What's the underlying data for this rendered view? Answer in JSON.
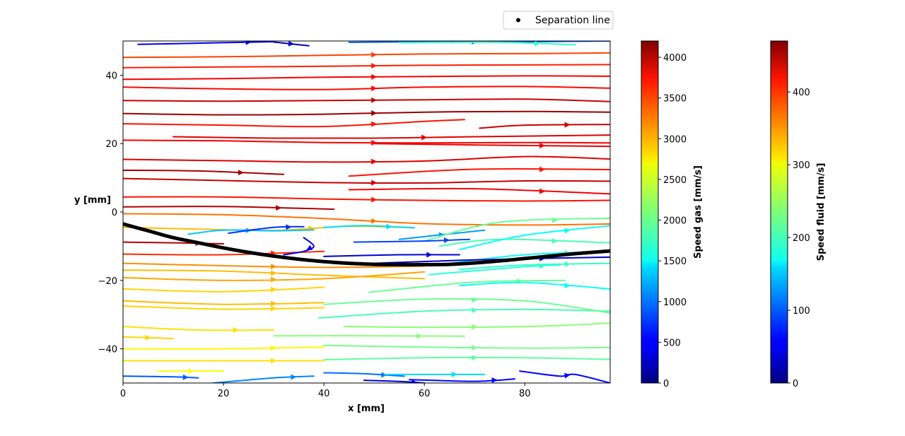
{
  "chart_data": {
    "type": "streamplot",
    "xlabel": "x [mm]",
    "ylabel": "y [mm]",
    "xlim": [
      0,
      97
    ],
    "ylim": [
      -50,
      50
    ],
    "xticks": [
      0,
      20,
      40,
      60,
      80
    ],
    "yticks": [
      -40,
      -20,
      0,
      20,
      40
    ],
    "legend": {
      "label": "Separation line",
      "placement": "top-right, above plot"
    },
    "separation_line": {
      "x": [
        0,
        5,
        10,
        15,
        20,
        25,
        30,
        35,
        40,
        45,
        50,
        55,
        60,
        65,
        70,
        75,
        80,
        85,
        90,
        97
      ],
      "y": [
        -3.5,
        -5.5,
        -7.5,
        -9,
        -10.5,
        -11.8,
        -12.9,
        -13.8,
        -14.5,
        -15,
        -15.3,
        -15.4,
        -15.4,
        -15.3,
        -14.9,
        -14.3,
        -13.6,
        -12.9,
        -12.2,
        -11.4
      ]
    },
    "colorbars": [
      {
        "label": "Speed gas [mm/s]",
        "min": 0,
        "max": 4200,
        "colormap": "jet",
        "ticks": [
          0,
          500,
          1000,
          1500,
          2000,
          2500,
          3000,
          3500,
          4000
        ]
      },
      {
        "label": "Speed fluid [mm/s]",
        "min": 0,
        "max": 470,
        "colormap": "jet",
        "ticks": [
          0,
          100,
          200,
          300,
          400
        ]
      }
    ],
    "gas_streamlines": [
      {
        "x": [
          0,
          20,
          40,
          60,
          80,
          97
        ],
        "y": [
          45.2,
          45.4,
          45.8,
          46.2,
          46.3,
          46.5
        ],
        "speed": 3400
      },
      {
        "x": [
          0,
          20,
          40,
          60,
          80,
          97
        ],
        "y": [
          42.2,
          42.4,
          42.6,
          42.9,
          43.0,
          43.1
        ],
        "speed": 3550
      },
      {
        "x": [
          0,
          20,
          40,
          60,
          80,
          97
        ],
        "y": [
          38.8,
          39.0,
          39.4,
          39.6,
          39.8,
          39.7
        ],
        "speed": 3700
      },
      {
        "x": [
          0,
          20,
          40,
          60,
          80,
          97
        ],
        "y": [
          36.5,
          36.0,
          35.8,
          36.5,
          36.7,
          36.2
        ],
        "speed": 3650
      },
      {
        "x": [
          0,
          20,
          40,
          60,
          80,
          97
        ],
        "y": [
          32.6,
          32.4,
          32.6,
          32.8,
          33.0,
          32.3
        ],
        "speed": 3900
      },
      {
        "x": [
          0,
          20,
          40,
          60,
          80,
          97
        ],
        "y": [
          28.8,
          28.4,
          28.6,
          29.2,
          29.4,
          29.2
        ],
        "speed": 4100
      },
      {
        "x": [
          0,
          20,
          40,
          60,
          68
        ],
        "y": [
          25.8,
          25.4,
          25.0,
          26.5,
          27.0
        ],
        "speed": 3600
      },
      {
        "x": [
          71,
          80,
          97
        ],
        "y": [
          24.5,
          25.4,
          25.6
        ],
        "speed": 3900
      },
      {
        "x": [
          10,
          30,
          50,
          70,
          97
        ],
        "y": [
          22.0,
          21.6,
          21.6,
          22.0,
          22.5
        ],
        "speed": 3800
      },
      {
        "x": [
          0,
          20,
          40,
          60,
          80,
          97
        ],
        "y": [
          21.0,
          20.8,
          20.3,
          20.2,
          20.3,
          20.2
        ],
        "speed": 3700
      },
      {
        "x": [
          50,
          70,
          97
        ],
        "y": [
          20.0,
          19.6,
          19.2
        ],
        "speed": 3750
      },
      {
        "x": [
          0,
          20,
          40,
          60,
          80,
          97
        ],
        "y": [
          15.4,
          15.0,
          14.6,
          14.9,
          16.2,
          15.5
        ],
        "speed": 3800
      },
      {
        "x": [
          0,
          15,
          32
        ],
        "y": [
          12.2,
          12.0,
          11.0
        ],
        "speed": 4050
      },
      {
        "x": [
          45,
          70,
          97
        ],
        "y": [
          10.5,
          12.5,
          12.4
        ],
        "speed": 3600
      },
      {
        "x": [
          0,
          20,
          40,
          60,
          80,
          97
        ],
        "y": [
          9.8,
          9.2,
          8.6,
          8.5,
          9.1,
          9.0
        ],
        "speed": 3900
      },
      {
        "x": [
          45,
          70,
          97
        ],
        "y": [
          6.5,
          6.8,
          5.3
        ],
        "speed": 3700
      },
      {
        "x": [
          0,
          20,
          40,
          60,
          80,
          97
        ],
        "y": [
          4.4,
          4.4,
          3.8,
          3.4,
          3.2,
          3.4
        ],
        "speed": 3600
      },
      {
        "x": [
          0,
          20,
          42
        ],
        "y": [
          1.5,
          1.6,
          0.8
        ],
        "speed": 4000
      },
      {
        "x": [
          0,
          20,
          40,
          60,
          80,
          97
        ],
        "y": [
          -0.5,
          -0.8,
          -1.9,
          -3.4,
          -3.8,
          -3.5
        ],
        "speed": 3200
      },
      {
        "x": [
          0,
          15,
          30,
          45,
          58
        ],
        "y": [
          -4.5,
          -5.0,
          -5.4,
          -4.2,
          -4.6
        ],
        "speed": 2900
      },
      {
        "x": [
          0,
          10,
          20
        ],
        "y": [
          -8.8,
          -9.0,
          -9.3
        ],
        "speed": 4000
      },
      {
        "x": [
          0,
          20,
          40
        ],
        "y": [
          -12.3,
          -12.5,
          -11.5
        ],
        "speed": 3500
      },
      {
        "x": [
          0,
          20,
          40,
          60
        ],
        "y": [
          -15.0,
          -15.7,
          -16.2,
          -15.8
        ],
        "speed": 3100
      },
      {
        "x": [
          0,
          20,
          40,
          60
        ],
        "y": [
          -17.0,
          -17.3,
          -18.5,
          -19.5
        ],
        "speed": 2900
      },
      {
        "x": [
          0,
          20,
          40,
          60
        ],
        "y": [
          -19.2,
          -20.0,
          -19.5,
          -17.5
        ],
        "speed": 3000
      },
      {
        "x": [
          0,
          20,
          40
        ],
        "y": [
          -22.5,
          -23.3,
          -22.0
        ],
        "speed": 2800
      },
      {
        "x": [
          0,
          20,
          40
        ],
        "y": [
          -26.0,
          -27.0,
          -26.5
        ],
        "speed": 2900
      },
      {
        "x": [
          0,
          20,
          40
        ],
        "y": [
          -27.5,
          -28.4,
          -28.0
        ],
        "speed": 2800
      },
      {
        "x": [
          0,
          15,
          30
        ],
        "y": [
          -33.5,
          -34.5,
          -34.5
        ],
        "speed": 2750
      },
      {
        "x": [
          0,
          10
        ],
        "y": [
          -36.5,
          -37.0
        ],
        "speed": 2800
      },
      {
        "x": [
          0,
          20,
          40
        ],
        "y": [
          -40.0,
          -40.0,
          -39.5
        ],
        "speed": 2650
      },
      {
        "x": [
          0,
          20,
          40
        ],
        "y": [
          -43.5,
          -43.5,
          -43.5
        ],
        "speed": 2750
      },
      {
        "x": [
          7,
          20
        ],
        "y": [
          -46.5,
          -46.5
        ],
        "speed": 2600
      }
    ],
    "fluid_streamlines": [
      {
        "x": [
          44,
          60,
          80,
          97
        ],
        "y": [
          -33.5,
          -33.7,
          -33.5,
          -32.5
        ],
        "speed": 240
      },
      {
        "x": [
          30,
          50,
          68
        ],
        "y": [
          -36.2,
          -36.2,
          -36.3
        ],
        "speed": 240
      },
      {
        "x": [
          40,
          60,
          80,
          97
        ],
        "y": [
          -39.0,
          -39.5,
          -39.8,
          -39.6
        ],
        "speed": 230
      },
      {
        "x": [
          40,
          60,
          80,
          97
        ],
        "y": [
          -43.2,
          -42.6,
          -42.6,
          -43.1
        ],
        "speed": 220
      },
      {
        "x": [
          39,
          60,
          80,
          97
        ],
        "y": [
          -31.0,
          -29.0,
          -28.5,
          -29.0
        ],
        "speed": 210
      },
      {
        "x": [
          40,
          60,
          80,
          97
        ],
        "y": [
          -27.0,
          -25.5,
          -26.0,
          -29.5
        ],
        "speed": 225
      },
      {
        "x": [
          49,
          70,
          88
        ],
        "y": [
          -23.5,
          -20.5,
          -20.0
        ],
        "speed": 225
      },
      {
        "x": [
          67,
          80,
          97
        ],
        "y": [
          -21.5,
          -20.6,
          -22.5
        ],
        "speed": 180
      },
      {
        "x": [
          61,
          80,
          87
        ],
        "y": [
          -18.3,
          -16.0,
          -15.5
        ],
        "speed": 195
      },
      {
        "x": [
          67,
          80,
          97
        ],
        "y": [
          -16.8,
          -15.5,
          -15.0
        ],
        "speed": 200
      },
      {
        "x": [
          65,
          80,
          97
        ],
        "y": [
          -15.0,
          -12.5,
          -11.5
        ],
        "speed": 180
      },
      {
        "x": [
          63,
          75,
          97
        ],
        "y": [
          -10.0,
          -8.0,
          -9.0
        ],
        "speed": 210
      },
      {
        "x": [
          67,
          80,
          97
        ],
        "y": [
          -11.0,
          -6.8,
          -4.0
        ],
        "speed": 180
      },
      {
        "x": [
          55,
          72
        ],
        "y": [
          -8.0,
          -5.3
        ],
        "speed": 130
      },
      {
        "x": [
          60,
          75,
          97
        ],
        "y": [
          -8.5,
          -3.0,
          -1.8
        ],
        "speed": 225
      },
      {
        "x": [
          46,
          60,
          69
        ],
        "y": [
          -8.8,
          -8.5,
          -8.0
        ],
        "speed": 90
      },
      {
        "x": [
          40,
          55,
          67
        ],
        "y": [
          -13.0,
          -12.5,
          -12.5
        ],
        "speed": 40
      },
      {
        "x": [
          50,
          70,
          97
        ],
        "y": [
          -15.0,
          -14.0,
          -13.2
        ],
        "speed": 30
      },
      {
        "x": [
          13,
          20,
          30,
          38
        ],
        "y": [
          -6.5,
          -5.3,
          -5.5,
          -5.2
        ],
        "speed": 150
      },
      {
        "x": [
          21,
          30,
          36
        ],
        "y": [
          -6.2,
          -4.5,
          -4.3
        ],
        "speed": 80
      },
      {
        "x": [
          36,
          38,
          36,
          32
        ],
        "y": [
          -7.5,
          -10.0,
          -11.5,
          -12.5
        ],
        "speed": 50
      },
      {
        "x": [
          40,
          48,
          58
        ],
        "y": [
          -4.5,
          -4.0,
          -4.6
        ],
        "speed": 160
      },
      {
        "x": [
          3,
          20,
          30
        ],
        "y": [
          49.0,
          49.5,
          49.8
        ],
        "speed": 50
      },
      {
        "x": [
          30,
          37
        ],
        "y": [
          49.7,
          48.6
        ],
        "speed": 30
      },
      {
        "x": [
          45,
          60,
          80,
          97
        ],
        "y": [
          49.6,
          49.8,
          49.8,
          50.0
        ],
        "speed": 100
      },
      {
        "x": [
          55,
          75,
          90
        ],
        "y": [
          49.5,
          49.6,
          48.9
        ],
        "speed": 200
      },
      {
        "x": [
          0,
          10,
          15
        ],
        "y": [
          -48.0,
          -48.2,
          -48.5
        ],
        "speed": 100
      },
      {
        "x": [
          18,
          30,
          38
        ],
        "y": [
          -50.0,
          -48.5,
          -48.0
        ],
        "speed": 120
      },
      {
        "x": [
          40,
          48,
          56
        ],
        "y": [
          -47.0,
          -47.3,
          -48.0
        ],
        "speed": 110
      },
      {
        "x": [
          48,
          56,
          60
        ],
        "y": [
          -49.2,
          -49.6,
          -50.0
        ],
        "speed": 40
      },
      {
        "x": [
          52,
          60,
          72
        ],
        "y": [
          -47.5,
          -47.5,
          -47.5
        ],
        "speed": 160
      },
      {
        "x": [
          57,
          70,
          78
        ],
        "y": [
          -49.0,
          -49.5,
          -48.8
        ],
        "speed": 60
      },
      {
        "x": [
          79,
          87,
          90,
          97
        ],
        "y": [
          -46.5,
          -48.0,
          -47.5,
          -50.0
        ],
        "speed": 60
      }
    ]
  }
}
